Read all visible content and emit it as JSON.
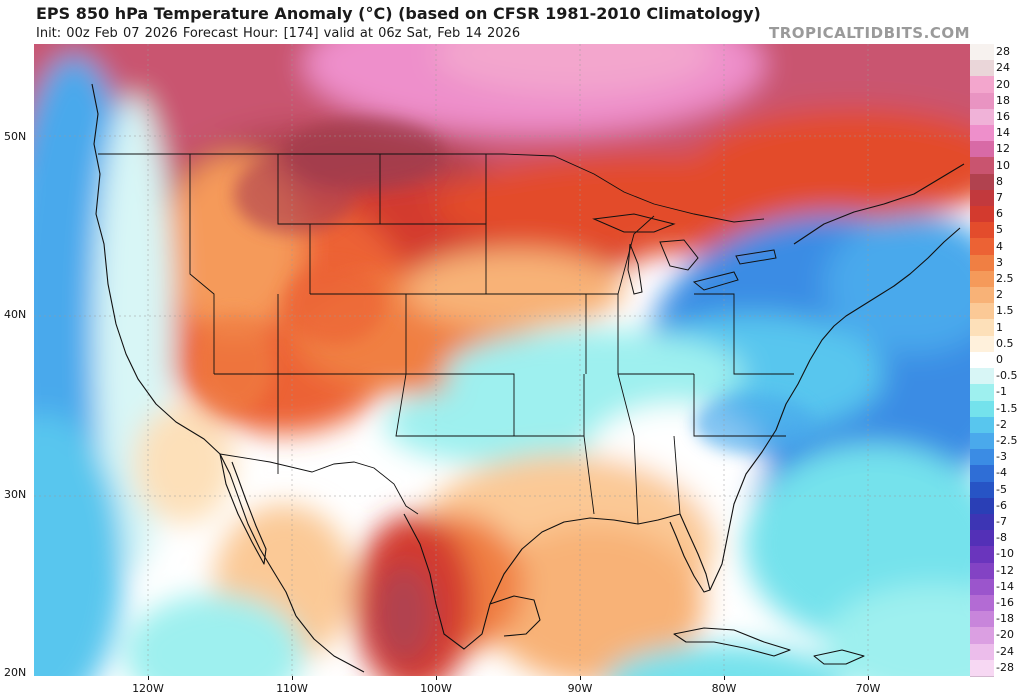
{
  "header": {
    "title": "EPS 850 hPa Temperature Anomaly (°C) (based on CFSR 1981-2010 Climatology)",
    "subtitle": "Init: 00z Feb 07 2026   Forecast Hour: [174]   valid at 06z Sat, Feb 14 2026",
    "watermark": "TROPICALTIDBITS.COM"
  },
  "axes": {
    "lat_labels": [
      "50N",
      "40N",
      "30N",
      "20N"
    ],
    "lon_labels": [
      "120W",
      "110W",
      "100W",
      "90W",
      "80W",
      "70W"
    ]
  },
  "colorbar": {
    "unit": "°C",
    "levels": [
      {
        "label": "28",
        "color": "#f7f2ef"
      },
      {
        "label": "24",
        "color": "#ead6d9"
      },
      {
        "label": "20",
        "color": "#f3a6cd"
      },
      {
        "label": "18",
        "color": "#e994c2"
      },
      {
        "label": "16",
        "color": "#f0b2d8"
      },
      {
        "label": "14",
        "color": "#ee8fcb"
      },
      {
        "label": "12",
        "color": "#d86aa6"
      },
      {
        "label": "10",
        "color": "#c9546f"
      },
      {
        "label": "8",
        "color": "#b1424f"
      },
      {
        "label": "7",
        "color": "#c2393d"
      },
      {
        "label": "6",
        "color": "#d33a2e"
      },
      {
        "label": "5",
        "color": "#e34c2c"
      },
      {
        "label": "4",
        "color": "#ec6234"
      },
      {
        "label": "3",
        "color": "#f07f43"
      },
      {
        "label": "2.5",
        "color": "#f59a5a"
      },
      {
        "label": "2",
        "color": "#f8b277"
      },
      {
        "label": "1.5",
        "color": "#fbc996"
      },
      {
        "label": "1",
        "color": "#fde0b9"
      },
      {
        "label": "0.5",
        "color": "#fff1dc"
      },
      {
        "label": "0",
        "color": "#ffffff"
      },
      {
        "label": "-0.5",
        "color": "#d8f6f6"
      },
      {
        "label": "-1",
        "color": "#9ef0ef"
      },
      {
        "label": "-1.5",
        "color": "#74e2ec"
      },
      {
        "label": "-2",
        "color": "#58c6ee"
      },
      {
        "label": "-2.5",
        "color": "#4aa9ec"
      },
      {
        "label": "-3",
        "color": "#3b8ce4"
      },
      {
        "label": "-4",
        "color": "#2f6ed6"
      },
      {
        "label": "-5",
        "color": "#2754c5"
      },
      {
        "label": "-6",
        "color": "#2a3fb6"
      },
      {
        "label": "-7",
        "color": "#3d35b4"
      },
      {
        "label": "-8",
        "color": "#5330b7"
      },
      {
        "label": "-10",
        "color": "#6a35bd"
      },
      {
        "label": "-12",
        "color": "#8343c4"
      },
      {
        "label": "-14",
        "color": "#9b55cc"
      },
      {
        "label": "-16",
        "color": "#b36bd4"
      },
      {
        "label": "-18",
        "color": "#c885db"
      },
      {
        "label": "-20",
        "color": "#db9fe2"
      },
      {
        "label": "-24",
        "color": "#ecbdeb"
      },
      {
        "label": "-28",
        "color": "#f7d8f3"
      }
    ]
  }
}
